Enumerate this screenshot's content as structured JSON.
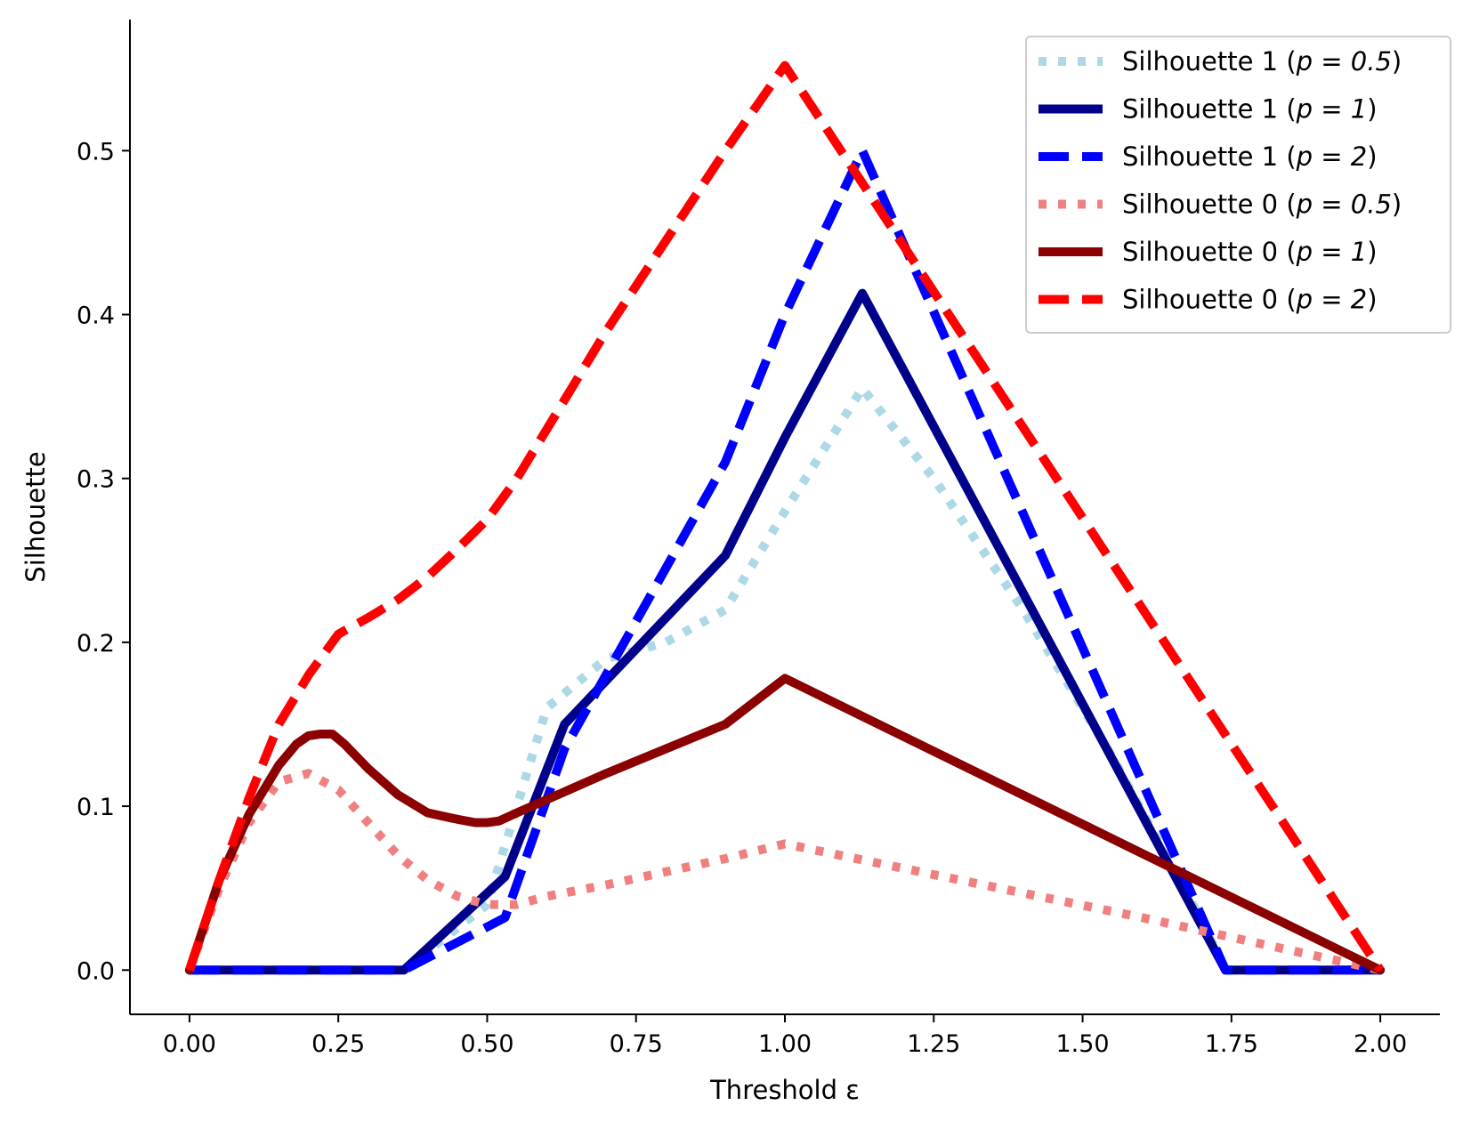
{
  "chart_data": {
    "type": "line",
    "title": "",
    "xlabel": "Threshold ε",
    "ylabel": "Silhouette",
    "xlim": [
      -0.1,
      2.1
    ],
    "ylim": [
      -0.027,
      0.58
    ],
    "xticks": [
      0.0,
      0.25,
      0.5,
      0.75,
      1.0,
      1.25,
      1.5,
      1.75,
      2.0
    ],
    "xtick_labels": [
      "0.00",
      "0.25",
      "0.50",
      "0.75",
      "1.00",
      "1.25",
      "1.50",
      "1.75",
      "2.00"
    ],
    "yticks": [
      0.0,
      0.1,
      0.2,
      0.3,
      0.4,
      0.5
    ],
    "ytick_labels": [
      "0.0",
      "0.1",
      "0.2",
      "0.3",
      "0.4",
      "0.5"
    ],
    "grid": false,
    "legend_position": "top-right",
    "series": [
      {
        "name": "Silhouette 1 (p = 0.5)",
        "label_prefix": "Silhouette 1 (",
        "p_text": "p = 0.5",
        "label_suffix": ")",
        "color": "#add8e6",
        "style": "dotted",
        "x": [
          0,
          0.36,
          0.5,
          0.6,
          0.7,
          0.8,
          0.9,
          1.0,
          1.13,
          1.25,
          1.4,
          1.55,
          1.7,
          1.74,
          2.0
        ],
        "y": [
          0,
          0,
          0.04,
          0.16,
          0.19,
          0.2,
          0.22,
          0.28,
          0.355,
          0.3,
          0.22,
          0.13,
          0.03,
          0,
          0
        ]
      },
      {
        "name": "Silhouette 1 (p = 1)",
        "label_prefix": "Silhouette 1 (",
        "p_text": "p = 1",
        "label_suffix": ")",
        "color": "#00008b",
        "style": "solid",
        "x": [
          0,
          0.36,
          0.53,
          0.63,
          0.9,
          1.0,
          1.13,
          1.74,
          2.0
        ],
        "y": [
          0,
          0,
          0.057,
          0.15,
          0.253,
          0.325,
          0.413,
          0,
          0
        ],
        "legend_label": "Silhouette 1 (p = 1)"
      },
      {
        "name": "Silhouette 1 (p = 2)",
        "label_prefix": "Silhouette 1 (",
        "p_text": "p = 2",
        "label_suffix": ")",
        "color": "#0000ff",
        "style": "dashed",
        "x": [
          0,
          0.36,
          0.53,
          0.63,
          0.9,
          1.0,
          1.13,
          1.74,
          2.0
        ],
        "y": [
          0,
          0,
          0.032,
          0.135,
          0.31,
          0.4,
          0.5,
          0,
          0
        ]
      },
      {
        "name": "Silhouette 0 (p = 0.5)",
        "label_prefix": "Silhouette 0 (",
        "p_text": "p = 0.5",
        "label_suffix": ")",
        "color": "#f08080",
        "style": "dotted",
        "x": [
          0,
          0.05,
          0.1,
          0.15,
          0.2,
          0.25,
          0.3,
          0.35,
          0.4,
          0.45,
          0.5,
          0.55,
          0.6,
          0.7,
          0.8,
          0.9,
          1.0,
          1.2,
          1.4,
          1.6,
          1.8,
          2.0
        ],
        "y": [
          0,
          0.05,
          0.09,
          0.115,
          0.12,
          0.11,
          0.09,
          0.07,
          0.055,
          0.045,
          0.04,
          0.04,
          0.045,
          0.052,
          0.06,
          0.068,
          0.077,
          0.062,
          0.047,
          0.032,
          0.016,
          0
        ]
      },
      {
        "name": "Silhouette 0 (p = 1)",
        "label_prefix": "Silhouette 0 (",
        "p_text": "p = 1",
        "label_suffix": ")",
        "color": "#8b0000",
        "style": "solid",
        "x": [
          0,
          0.05,
          0.1,
          0.15,
          0.18,
          0.2,
          0.22,
          0.24,
          0.26,
          0.3,
          0.35,
          0.4,
          0.45,
          0.48,
          0.5,
          0.52,
          0.55,
          0.6,
          0.7,
          0.8,
          0.9,
          1.0,
          1.5,
          2.0
        ],
        "y": [
          0,
          0.055,
          0.095,
          0.125,
          0.138,
          0.143,
          0.144,
          0.144,
          0.138,
          0.123,
          0.107,
          0.096,
          0.092,
          0.09,
          0.09,
          0.091,
          0.096,
          0.104,
          0.12,
          0.135,
          0.15,
          0.178,
          0.089,
          0
        ]
      },
      {
        "name": "Silhouette 0 (p = 2)",
        "label_prefix": "Silhouette 0 (",
        "p_text": "p = 2",
        "label_suffix": ")",
        "color": "#ff0000",
        "style": "dashed",
        "x": [
          0,
          0.05,
          0.1,
          0.15,
          0.2,
          0.25,
          0.3,
          0.35,
          0.4,
          0.45,
          0.5,
          0.55,
          0.6,
          0.7,
          0.8,
          0.9,
          1.0,
          1.5,
          2.0
        ],
        "y": [
          0,
          0.055,
          0.105,
          0.15,
          0.18,
          0.205,
          0.215,
          0.226,
          0.24,
          0.257,
          0.275,
          0.3,
          0.33,
          0.39,
          0.445,
          0.5,
          0.552,
          0.276,
          0
        ]
      }
    ]
  }
}
